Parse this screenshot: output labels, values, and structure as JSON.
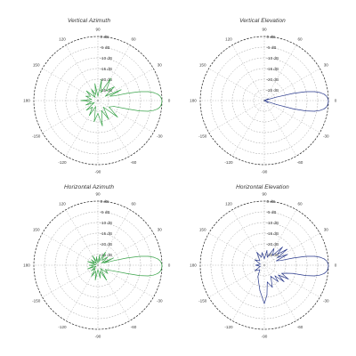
{
  "chart_data": [
    {
      "type": "polar",
      "title": "Vertical Azimuth",
      "radial_unit": "dB",
      "r_ticks": [
        "0 dB",
        "-5 dB",
        "-10 dB",
        "-15 dB",
        "-20 dB",
        "-25 dB",
        "-30 dB"
      ],
      "r_range": [
        -30,
        0
      ],
      "angle_ticks": [
        "0",
        "30",
        "60",
        "90",
        "120",
        "150",
        "180",
        "-150",
        "-120",
        "-90",
        "-60",
        "-30"
      ],
      "series": [
        {
          "color": "#3aa34a",
          "angles": [
            0,
            2,
            4,
            6,
            8,
            10,
            12,
            14,
            16,
            20,
            25,
            30,
            40,
            50,
            60,
            70,
            80,
            90,
            100,
            110,
            120,
            130,
            140,
            150,
            160,
            170,
            180,
            190,
            200,
            210,
            220,
            230,
            240,
            250,
            260,
            270,
            280,
            290,
            300,
            310,
            320,
            330,
            340,
            344,
            346,
            348,
            350,
            352,
            354,
            356,
            358,
            360
          ],
          "values": [
            0,
            -0.3,
            -0.8,
            -1.8,
            -3.5,
            -6,
            -10,
            -16,
            -22,
            -24,
            -18,
            -26,
            -20,
            -24,
            -18,
            -26,
            -20,
            -28,
            -22,
            -27,
            -24,
            -28,
            -23,
            -26,
            -24,
            -27,
            -22,
            -27,
            -24,
            -28,
            -23,
            -26,
            -22,
            -27,
            -20,
            -24,
            -18,
            -25,
            -20,
            -26,
            -18,
            -24,
            -22,
            -16,
            -10,
            -6,
            -3.5,
            -1.8,
            -0.8,
            -0.3,
            -0.1,
            0
          ]
        }
      ]
    },
    {
      "type": "polar",
      "title": "Vertical Elevation",
      "radial_unit": "dB",
      "r_ticks": [
        "0 dB",
        "-5 dB",
        "-10 dB",
        "-15 dB",
        "-20 dB",
        "-25 dB",
        "-30 dB"
      ],
      "r_range": [
        -30,
        0
      ],
      "angle_ticks": [
        "0",
        "30",
        "60",
        "90",
        "120",
        "150",
        "180",
        "-150",
        "-120",
        "-90",
        "-60",
        "-30"
      ],
      "series": [
        {
          "color": "#2a3a8c",
          "angles": [
            0,
            2,
            4,
            6,
            8,
            10,
            12,
            14,
            16,
            18,
            20,
            25,
            30,
            40,
            60,
            90,
            120,
            150,
            180,
            210,
            240,
            270,
            300,
            320,
            330,
            335,
            340,
            342,
            344,
            346,
            348,
            350,
            352,
            354,
            356,
            358,
            360
          ],
          "values": [
            0,
            -0.3,
            -0.8,
            -1.8,
            -3.5,
            -6,
            -10,
            -16,
            -24,
            -29,
            -30,
            -28,
            -30,
            -30,
            -30,
            -30,
            -30,
            -30,
            -30,
            -30,
            -30,
            -30,
            -30,
            -30,
            -28,
            -30,
            -29,
            -24,
            -16,
            -10,
            -6,
            -3.5,
            -1.8,
            -0.8,
            -0.3,
            -0.1,
            0
          ]
        }
      ]
    },
    {
      "type": "polar",
      "title": "Horizontal Azimuth",
      "radial_unit": "dB",
      "r_ticks": [
        "0 dB",
        "-5 dB",
        "-10 dB",
        "-15 dB",
        "-20 dB",
        "-25 dB",
        "-30 dB"
      ],
      "r_range": [
        -30,
        0
      ],
      "angle_ticks": [
        "0",
        "30",
        "60",
        "90",
        "120",
        "150",
        "180",
        "-150",
        "-120",
        "-90",
        "-60",
        "-30"
      ],
      "series": [
        {
          "color": "#3aa34a",
          "angles": [
            0,
            2,
            4,
            6,
            8,
            10,
            12,
            14,
            16,
            20,
            25,
            30,
            40,
            50,
            60,
            70,
            80,
            90,
            100,
            110,
            120,
            130,
            140,
            150,
            160,
            170,
            180,
            190,
            200,
            210,
            220,
            230,
            240,
            250,
            260,
            270,
            280,
            290,
            300,
            310,
            320,
            330,
            340,
            344,
            346,
            348,
            350,
            352,
            354,
            356,
            358,
            360
          ],
          "values": [
            0,
            -0.3,
            -0.8,
            -1.8,
            -3.5,
            -6,
            -10,
            -16,
            -22,
            -27,
            -22,
            -28,
            -24,
            -27,
            -23,
            -28,
            -25,
            -29,
            -26,
            -28,
            -25,
            -29,
            -26,
            -28,
            -25,
            -29,
            -26,
            -28,
            -25,
            -29,
            -26,
            -28,
            -24,
            -27,
            -23,
            -28,
            -24,
            -27,
            -22,
            -28,
            -24,
            -26,
            -22,
            -16,
            -10,
            -6,
            -3.5,
            -1.8,
            -0.8,
            -0.3,
            -0.1,
            0
          ]
        }
      ]
    },
    {
      "type": "polar",
      "title": "Horizontal Elevation",
      "radial_unit": "dB",
      "r_ticks": [
        "0 dB",
        "-5 dB",
        "-10 dB",
        "-15 dB",
        "-20 dB",
        "-25 dB",
        "-30 dB"
      ],
      "r_range": [
        -30,
        0
      ],
      "angle_ticks": [
        "0",
        "30",
        "60",
        "90",
        "120",
        "150",
        "180",
        "-150",
        "-120",
        "-90",
        "-60",
        "-30"
      ],
      "series": [
        {
          "color": "#2a3a8c",
          "angles": [
            0,
            2,
            4,
            6,
            8,
            10,
            12,
            14,
            16,
            20,
            25,
            30,
            35,
            40,
            45,
            50,
            60,
            70,
            80,
            90,
            100,
            110,
            120,
            135,
            150,
            165,
            180,
            195,
            210,
            225,
            240,
            250,
            260,
            270,
            275,
            280,
            290,
            300,
            310,
            315,
            320,
            325,
            330,
            335,
            340,
            344,
            346,
            348,
            350,
            352,
            354,
            356,
            358,
            360
          ],
          "values": [
            0,
            -0.3,
            -0.8,
            -1.8,
            -3.5,
            -6,
            -10,
            -16,
            -22,
            -24,
            -18,
            -23,
            -17,
            -22,
            -18,
            -24,
            -21,
            -26,
            -23,
            -27,
            -24,
            -26,
            -23,
            -27,
            -25,
            -28,
            -26,
            -28,
            -25,
            -27,
            -24,
            -22,
            -18,
            -12,
            -16,
            -22,
            -19,
            -24,
            -20,
            -23,
            -18,
            -22,
            -17,
            -21,
            -19,
            -16,
            -10,
            -6,
            -3.5,
            -1.8,
            -0.8,
            -0.3,
            -0.1,
            0
          ]
        }
      ]
    }
  ]
}
